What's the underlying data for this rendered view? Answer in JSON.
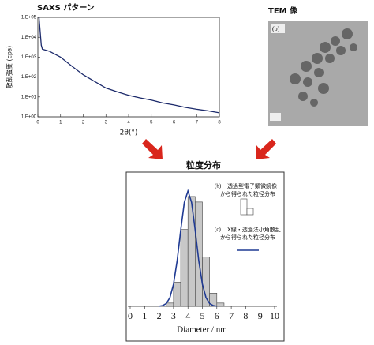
{
  "chart_data": [
    {
      "type": "line",
      "title": "SAXS パターン",
      "x_label": "2θ(°)",
      "y_label": "散乱強度 (cps)",
      "log_y": true,
      "color": "#1c2a6b",
      "x": [
        0.05,
        0.1,
        0.15,
        0.2,
        0.5,
        1,
        1.5,
        2,
        2.5,
        3,
        3.5,
        4,
        4.5,
        5,
        5.5,
        6,
        6.5,
        7,
        7.5,
        8
      ],
      "values": [
        100000,
        20000,
        4000,
        2500,
        2000,
        1000,
        350,
        130,
        60,
        28,
        18,
        12,
        9,
        7,
        5,
        4,
        3,
        2.4,
        2,
        1.6
      ],
      "xlim": [
        0,
        8
      ],
      "xticks": [
        0,
        1,
        2,
        3,
        4,
        5,
        6,
        7,
        8
      ],
      "ylim": [
        1,
        100000
      ],
      "yticks": [
        {
          "value": 1,
          "label": "1.E+00"
        },
        {
          "value": 10,
          "label": "1.E+01"
        },
        {
          "value": 100,
          "label": "1.E+02"
        },
        {
          "value": 1000,
          "label": "1.E+03"
        },
        {
          "value": 10000,
          "label": "1.E+04"
        },
        {
          "value": 100000,
          "label": "1.E+05"
        }
      ]
    },
    {
      "type": "histogram",
      "title": "粒度分布",
      "x_label": "Diameter / nm",
      "bins": [
        2.5,
        3,
        3.5,
        4,
        4.5,
        5,
        5.5,
        6,
        6.5
      ],
      "values": [
        3,
        22,
        70,
        100,
        95,
        45,
        12,
        3
      ],
      "color": "#c8c8c8",
      "fit": {
        "type": "line",
        "color": "#1f3a93",
        "x": [
          2,
          2.25,
          2.5,
          2.75,
          3,
          3.25,
          3.5,
          3.75,
          4,
          4.25,
          4.5,
          4.75,
          5,
          5.25,
          5.5,
          5.75,
          6
        ],
        "values": [
          0.1,
          0.7,
          2.6,
          7.9,
          20.2,
          41.4,
          69.5,
          94.7,
          105,
          94.7,
          69.5,
          41.4,
          20.2,
          7.9,
          2.6,
          0.7,
          0.1
        ]
      },
      "legend": [
        {
          "tag": "(b)",
          "text": [
            "透過型電子顕微鏡像",
            "から得られた粒径分布"
          ]
        },
        {
          "tag": "(c)",
          "text": [
            "X線・透過法小角散乱",
            "から得られた粒径分布"
          ]
        }
      ],
      "xlim": [
        0,
        10
      ],
      "xticks": [
        0,
        1,
        2,
        3,
        4,
        5,
        6,
        7,
        8,
        9,
        10
      ],
      "ylim": [
        0,
        110
      ]
    }
  ],
  "tem": {
    "title": "TEM 像",
    "label": "(b)"
  }
}
